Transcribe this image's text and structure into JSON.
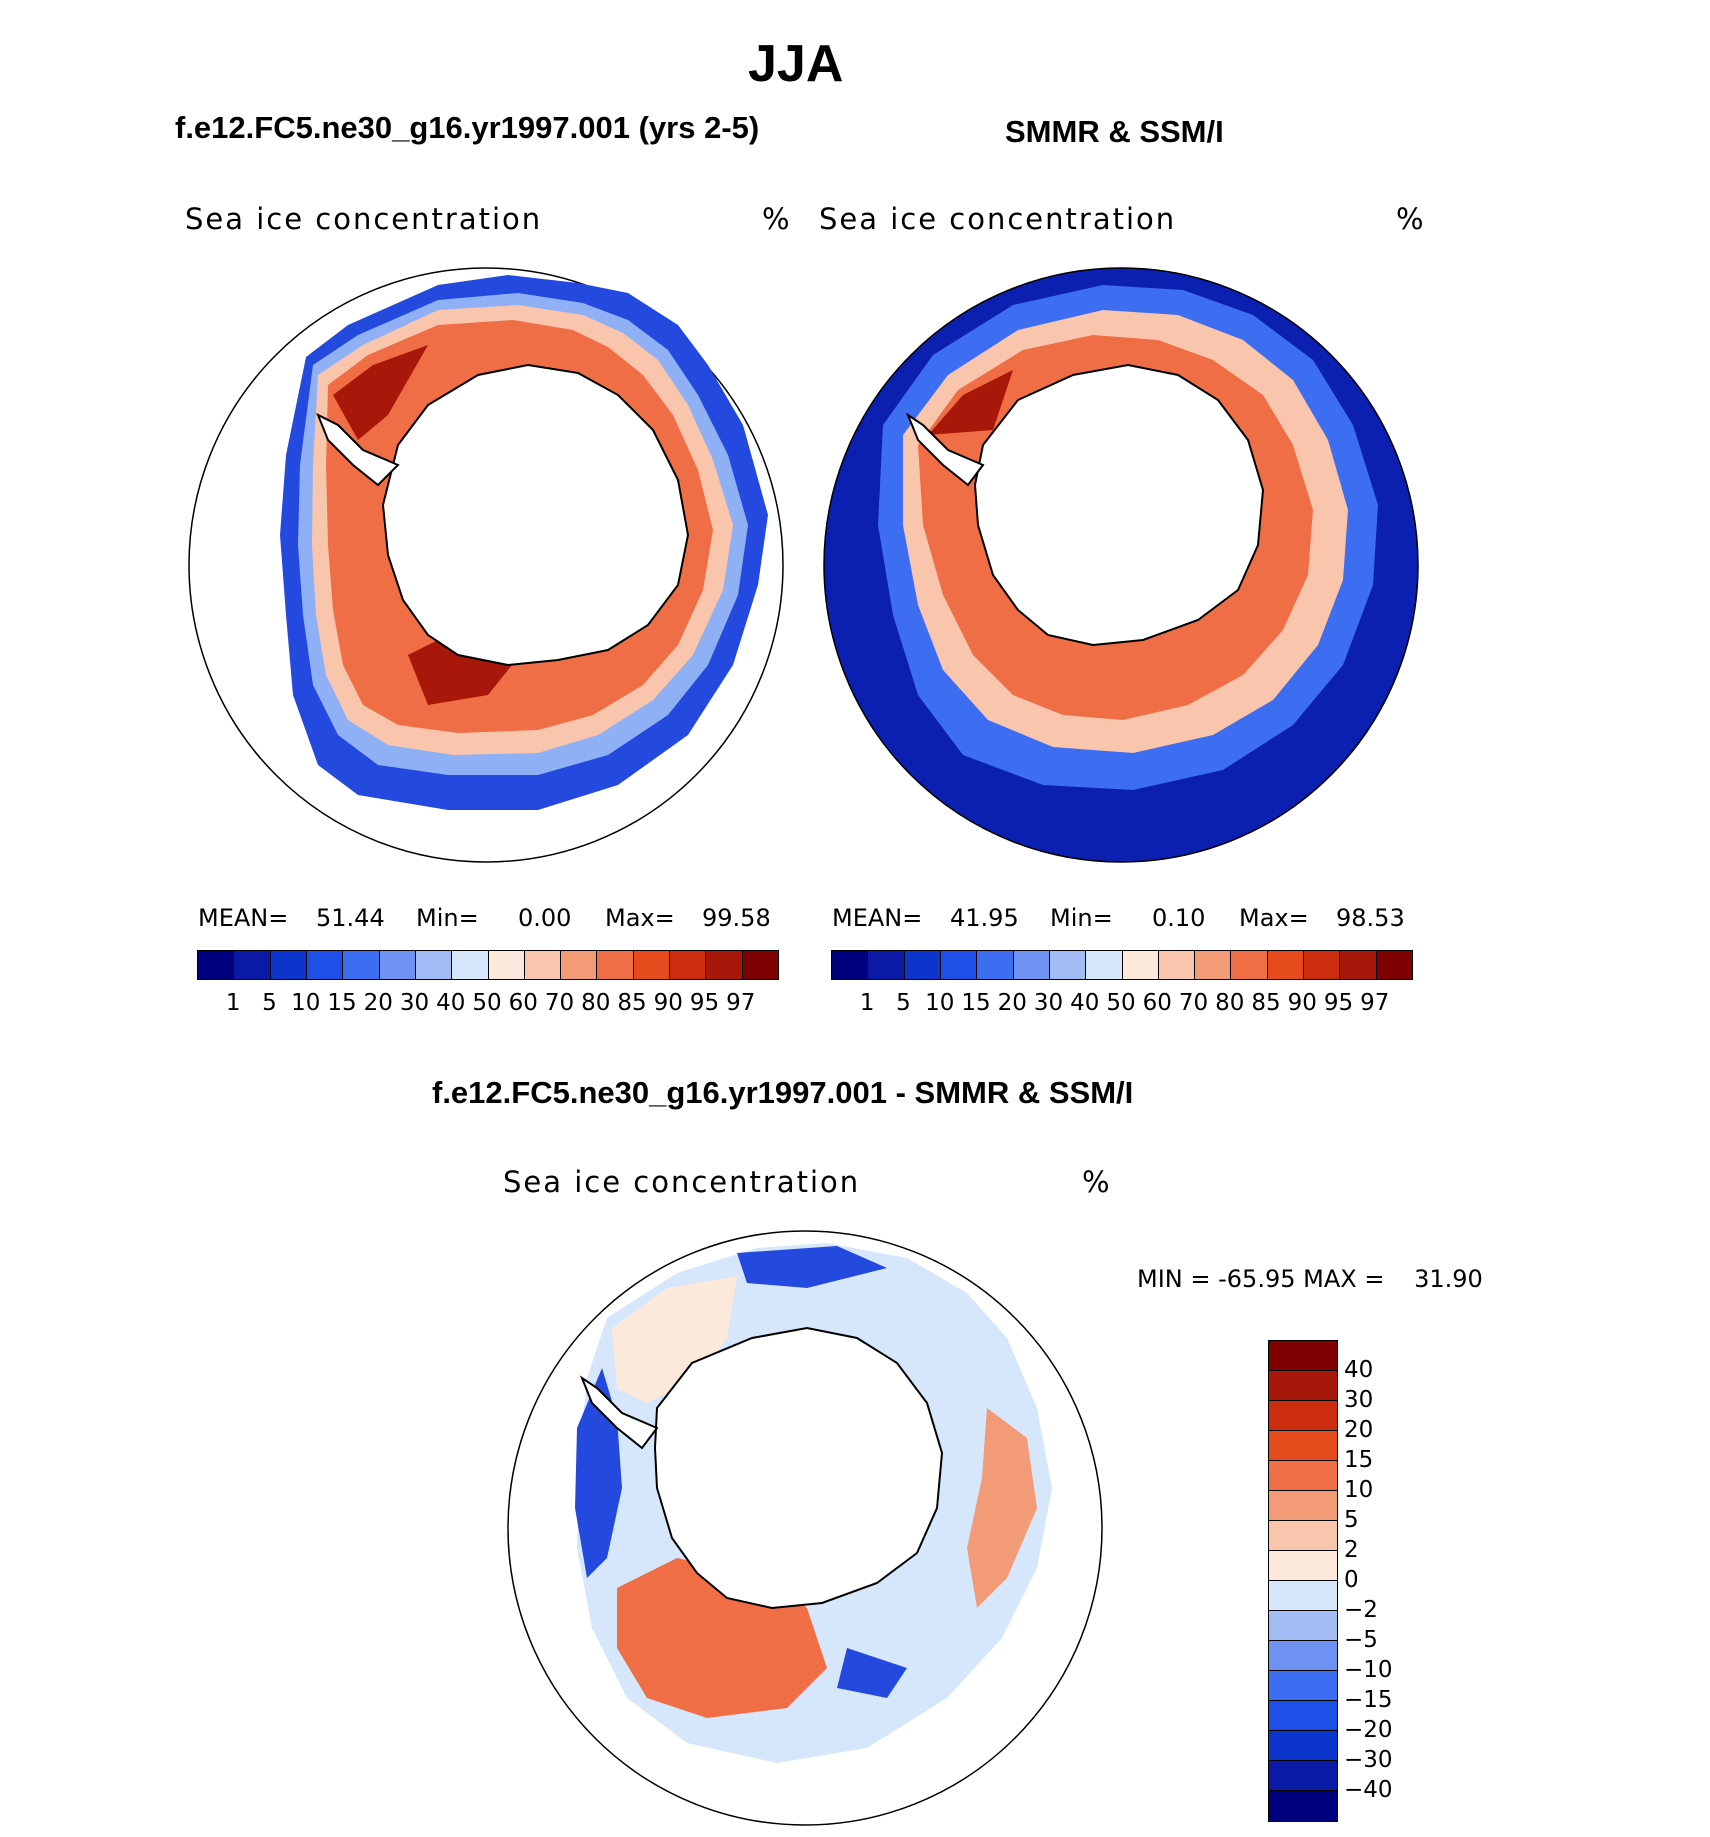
{
  "page_title": "JJA",
  "panels": [
    {
      "title": "f.e12.FC5.ne30_g16.yr1997.001 (yrs 2-5)",
      "variable": "Sea ice concentration",
      "unit": "%",
      "stats": {
        "mean_label": "MEAN=",
        "mean": "51.44",
        "min_label": "Min=",
        "min": "0.00",
        "max_label": "Max=",
        "max": "99.58"
      }
    },
    {
      "title": "SMMR & SSM/I",
      "variable": "Sea ice concentration",
      "unit": "%",
      "stats": {
        "mean_label": "MEAN=",
        "mean": "41.95",
        "min_label": "Min=",
        "min": "0.10",
        "max_label": "Max=",
        "max": "98.53"
      }
    },
    {
      "title": "f.e12.FC5.ne30_g16.yr1997.001 - SMMR & SSM/I",
      "variable": "Sea ice concentration",
      "unit": "%",
      "stats": {
        "min_label": "MIN =",
        "min": "-65.95",
        "max_label": "MAX =",
        "max": "31.90"
      }
    }
  ],
  "chart_data": [
    {
      "type": "heatmap",
      "map": "south-polar-stereographic",
      "title": "f.e12.FC5.ne30_g16.yr1997.001 (yrs 2-5)",
      "variable": "Sea ice concentration",
      "units": "%",
      "mean": 51.44,
      "min": 0.0,
      "max": 99.58,
      "colorbar_levels": [
        "1",
        "5",
        "10",
        "15",
        "20",
        "30",
        "40",
        "50",
        "60",
        "70",
        "80",
        "85",
        "90",
        "95",
        "97"
      ],
      "colors": [
        "#00007f",
        "#0a1aa6",
        "#0b35cc",
        "#1e4fe6",
        "#3d6df0",
        "#6f92f2",
        "#a3bcf5",
        "#d6e6fb",
        "#fde9dc",
        "#f9c6ad",
        "#f39a77",
        "#ef6e45",
        "#e64b1e",
        "#cc2d0f",
        "#a8180a",
        "#7f0000"
      ]
    },
    {
      "type": "heatmap",
      "map": "south-polar-stereographic",
      "title": "SMMR & SSM/I",
      "variable": "Sea ice concentration",
      "units": "%",
      "mean": 41.95,
      "min": 0.1,
      "max": 98.53,
      "colorbar_levels": [
        "1",
        "5",
        "10",
        "15",
        "20",
        "30",
        "40",
        "50",
        "60",
        "70",
        "80",
        "85",
        "90",
        "95",
        "97"
      ],
      "colors": [
        "#00007f",
        "#0a1aa6",
        "#0b35cc",
        "#1e4fe6",
        "#3d6df0",
        "#6f92f2",
        "#a3bcf5",
        "#d6e6fb",
        "#fde9dc",
        "#f9c6ad",
        "#f39a77",
        "#ef6e45",
        "#e64b1e",
        "#cc2d0f",
        "#a8180a",
        "#7f0000"
      ]
    },
    {
      "type": "heatmap",
      "map": "south-polar-stereographic",
      "title": "f.e12.FC5.ne30_g16.yr1997.001 - SMMR & SSM/I",
      "variable": "Sea ice concentration",
      "units": "%",
      "min": -65.95,
      "max": 31.9,
      "colorbar_levels": [
        "40",
        "30",
        "20",
        "15",
        "10",
        "5",
        "2",
        "0",
        "−2",
        "−5",
        "−10",
        "−15",
        "−20",
        "−30",
        "−40"
      ],
      "colors": [
        "#7f0000",
        "#a8180a",
        "#cc2d0f",
        "#e64b1e",
        "#ef6e45",
        "#f39a77",
        "#f9c6ad",
        "#fde9dc",
        "#d6e6fb",
        "#a3bcf5",
        "#6f92f2",
        "#3d6df0",
        "#1e4fe6",
        "#0b35cc",
        "#0a1aa6",
        "#00007f"
      ]
    }
  ]
}
